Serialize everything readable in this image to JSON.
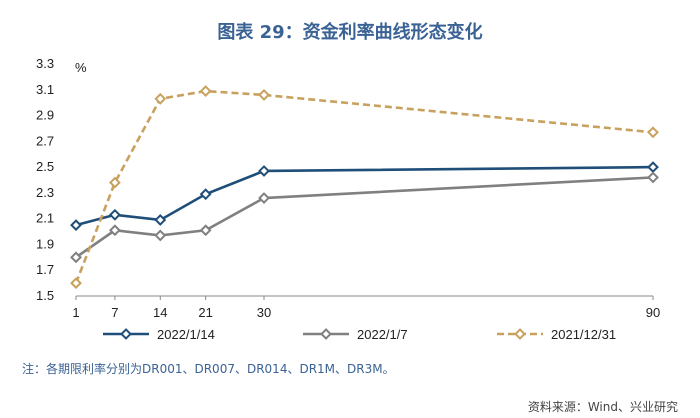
{
  "title": "图表 29：资金利率曲线形态变化",
  "note": "注：各期限利率分别为DR001、DR007、DR014、DR1M、DR3M。",
  "source": "资料来源：Wind、兴业研究",
  "colors": {
    "s1": "#1f4e79",
    "s2": "#808080",
    "s3": "#c9a15e",
    "title": "#3b6294"
  },
  "chart_data": {
    "type": "line",
    "ylabel": "%",
    "x": [
      1,
      7,
      14,
      21,
      30,
      90
    ],
    "xlim": [
      1,
      90
    ],
    "ylim": [
      1.5,
      3.3
    ],
    "xticks": [
      "1",
      "7",
      "14",
      "21",
      "30",
      "90"
    ],
    "yticks": [
      "3.3",
      "3.1",
      "2.9",
      "2.7",
      "2.5",
      "2.3",
      "2.1",
      "1.9",
      "1.7",
      "1.5"
    ],
    "series": [
      {
        "name": "2022/1/14",
        "values": [
          2.05,
          2.13,
          2.09,
          2.29,
          2.47,
          2.5
        ],
        "style": "solid",
        "color": "#1f4e79"
      },
      {
        "name": "2022/1/7",
        "values": [
          1.8,
          2.01,
          1.97,
          2.01,
          2.26,
          2.42
        ],
        "style": "solid",
        "color": "#808080"
      },
      {
        "name": "2021/12/31",
        "values": [
          1.6,
          2.38,
          3.03,
          3.09,
          3.06,
          2.77
        ],
        "style": "dashed",
        "color": "#c9a15e"
      }
    ]
  }
}
